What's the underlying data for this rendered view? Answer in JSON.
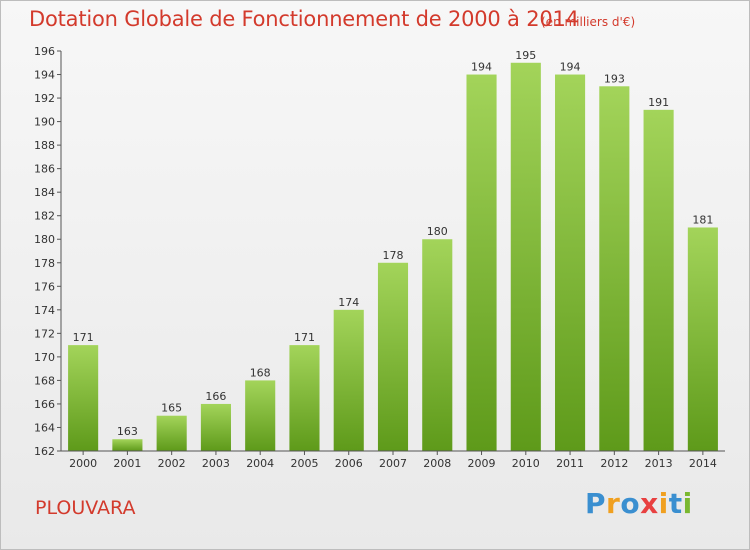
{
  "chart_data": {
    "type": "bar",
    "title": "Dotation Globale de Fonctionnement de 2000 à 2014",
    "subtitle": "(en milliers d'€)",
    "categories": [
      "2000",
      "2001",
      "2002",
      "2003",
      "2004",
      "2005",
      "2006",
      "2007",
      "2008",
      "2009",
      "2010",
      "2011",
      "2012",
      "2013",
      "2014"
    ],
    "values": [
      171,
      163,
      165,
      166,
      168,
      171,
      174,
      178,
      180,
      194,
      195,
      194,
      193,
      191,
      181
    ],
    "data_labels": [
      "171",
      "163",
      "165",
      "166",
      "168",
      "171",
      "174",
      "178",
      "180",
      "194",
      "195",
      "194",
      "193",
      "191",
      "181"
    ],
    "xlabel": "",
    "ylabel": "",
    "ylim": [
      162,
      196
    ],
    "yticks": [
      162,
      164,
      166,
      168,
      170,
      172,
      174,
      176,
      178,
      180,
      182,
      184,
      186,
      188,
      190,
      192,
      194,
      196
    ],
    "grid": false,
    "bar_color_top": "#a3d45a",
    "bar_color_bottom": "#5e9a1a"
  },
  "commune": "PLOUVARA",
  "logo": {
    "letters": [
      "P",
      "r",
      "o",
      "x",
      "i",
      "t",
      "i"
    ],
    "colors": [
      "#3a8fd0",
      "#f0a020",
      "#3a8fd0",
      "#e84040",
      "#f0a020",
      "#3a8fd0",
      "#7ab830"
    ]
  },
  "colors": {
    "accent": "#d33a2c",
    "axis": "#555555"
  }
}
